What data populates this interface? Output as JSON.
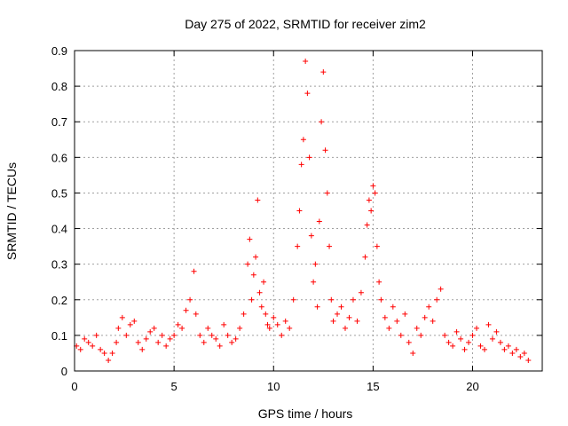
{
  "chart_data": {
    "type": "scatter",
    "title": "Day 275 of 2022, SRMTID for receiver zim2",
    "xlabel": "GPS time / hours",
    "ylabel": "SRMTID / TECUs",
    "xlim": [
      0,
      23.5
    ],
    "ylim": [
      0,
      0.9
    ],
    "xticks": [
      0,
      5,
      10,
      15,
      20
    ],
    "yticks": [
      0,
      0.1,
      0.2,
      0.3,
      0.4,
      0.5,
      0.6,
      0.7,
      0.8,
      0.9
    ],
    "grid": true,
    "marker": "+",
    "color": "#ff0000",
    "series": [
      {
        "name": "zim2",
        "x": [
          0.1,
          0.3,
          0.5,
          0.7,
          0.9,
          1.1,
          1.3,
          1.5,
          1.7,
          1.9,
          2.1,
          2.2,
          2.4,
          2.6,
          2.8,
          3.0,
          3.2,
          3.4,
          3.6,
          3.8,
          4.0,
          4.2,
          4.4,
          4.6,
          4.8,
          5.0,
          5.2,
          5.4,
          5.6,
          5.8,
          6.0,
          6.1,
          6.3,
          6.5,
          6.7,
          6.9,
          7.1,
          7.3,
          7.5,
          7.7,
          7.9,
          8.1,
          8.3,
          8.5,
          8.7,
          8.8,
          8.9,
          9.0,
          9.1,
          9.2,
          9.3,
          9.4,
          9.5,
          9.6,
          9.7,
          9.8,
          10.0,
          10.2,
          10.4,
          10.6,
          10.8,
          11.0,
          11.2,
          11.3,
          11.4,
          11.5,
          11.6,
          11.7,
          11.8,
          11.9,
          12.0,
          12.1,
          12.2,
          12.3,
          12.4,
          12.5,
          12.6,
          12.7,
          12.8,
          12.9,
          13.0,
          13.2,
          13.4,
          13.6,
          13.8,
          14.0,
          14.2,
          14.4,
          14.6,
          14.7,
          14.8,
          14.9,
          15.0,
          15.1,
          15.2,
          15.3,
          15.4,
          15.6,
          15.8,
          16.0,
          16.2,
          16.4,
          16.6,
          16.8,
          17.0,
          17.2,
          17.4,
          17.6,
          17.8,
          18.0,
          18.2,
          18.4,
          18.6,
          18.8,
          19.0,
          19.2,
          19.4,
          19.6,
          19.8,
          20.0,
          20.2,
          20.4,
          20.6,
          20.8,
          21.0,
          21.2,
          21.4,
          21.6,
          21.8,
          22.0,
          22.2,
          22.4,
          22.6,
          22.8
        ],
        "y": [
          0.07,
          0.06,
          0.09,
          0.08,
          0.07,
          0.1,
          0.06,
          0.05,
          0.03,
          0.05,
          0.08,
          0.12,
          0.15,
          0.1,
          0.13,
          0.14,
          0.08,
          0.06,
          0.09,
          0.11,
          0.12,
          0.08,
          0.1,
          0.07,
          0.09,
          0.1,
          0.13,
          0.12,
          0.17,
          0.2,
          0.28,
          0.16,
          0.1,
          0.08,
          0.12,
          0.1,
          0.09,
          0.07,
          0.13,
          0.1,
          0.08,
          0.09,
          0.12,
          0.16,
          0.3,
          0.37,
          0.2,
          0.27,
          0.32,
          0.48,
          0.22,
          0.18,
          0.25,
          0.16,
          0.13,
          0.12,
          0.15,
          0.13,
          0.1,
          0.14,
          0.12,
          0.2,
          0.35,
          0.45,
          0.58,
          0.65,
          0.87,
          0.78,
          0.6,
          0.38,
          0.25,
          0.3,
          0.18,
          0.42,
          0.7,
          0.84,
          0.62,
          0.5,
          0.35,
          0.2,
          0.14,
          0.16,
          0.18,
          0.12,
          0.15,
          0.2,
          0.14,
          0.22,
          0.32,
          0.41,
          0.48,
          0.45,
          0.52,
          0.5,
          0.35,
          0.25,
          0.2,
          0.15,
          0.12,
          0.18,
          0.14,
          0.1,
          0.16,
          0.08,
          0.05,
          0.12,
          0.1,
          0.15,
          0.18,
          0.14,
          0.2,
          0.23,
          0.1,
          0.08,
          0.07,
          0.11,
          0.09,
          0.06,
          0.08,
          0.1,
          0.12,
          0.07,
          0.06,
          0.13,
          0.09,
          0.11,
          0.08,
          0.06,
          0.07,
          0.05,
          0.06,
          0.04,
          0.05,
          0.03
        ]
      }
    ]
  }
}
